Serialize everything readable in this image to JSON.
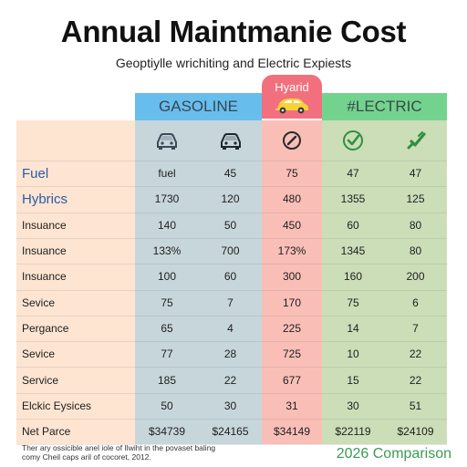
{
  "title": "Annual Maintmanie Cost",
  "subtitle": "Geoptiylle wrichiting and Electric Expiests",
  "hybrid_tab_label": "Hyarid",
  "comparison": "2026 Comparison",
  "footnote": [
    "Ther ary ossicible anel iole of Ilwiht in the povaset baling",
    "comy Cheil caps aril of cocoret, 2012."
  ],
  "colors": {
    "gasoline": "#57b7ec",
    "hybrid": "#f2707e",
    "electric": "#64cf82",
    "row_band": "#fde5d2"
  },
  "chart_data": {
    "type": "table",
    "title": "Annual Maintmanie Cost",
    "subtitle": "Geoptiylle wrichiting and Electric Expiests",
    "groups": [
      {
        "name": "GASOLINE",
        "columns": 2,
        "icons": [
          "car-icon",
          "car-icon"
        ]
      },
      {
        "name": "",
        "columns": 1,
        "icons": [
          "gauge-icon"
        ]
      },
      {
        "name": "#LECTRIC",
        "columns": 2,
        "icons": [
          "check-circle-icon",
          "plug-check-icon"
        ]
      }
    ],
    "rows": [
      {
        "label": "Fuel",
        "values": [
          "fuel",
          "45",
          "75",
          "47",
          "47"
        ]
      },
      {
        "label": "Hybrics",
        "values": [
          "1730",
          "120",
          "480",
          "1355",
          "125"
        ]
      },
      {
        "label": "Insuance",
        "values": [
          "140",
          "50",
          "450",
          "60",
          "80"
        ]
      },
      {
        "label": "Insuance",
        "values": [
          "133%",
          "700",
          "173%",
          "1345",
          "80"
        ]
      },
      {
        "label": "Insuance",
        "values": [
          "100",
          "60",
          "300",
          "160",
          "200"
        ]
      },
      {
        "label": "Sevice",
        "values": [
          "75",
          "7",
          "170",
          "75",
          "6"
        ]
      },
      {
        "label": "Pergance",
        "values": [
          "65",
          "4",
          "225",
          "14",
          "7"
        ]
      },
      {
        "label": "Sevice",
        "values": [
          "77",
          "28",
          "725",
          "10",
          "22"
        ]
      },
      {
        "label": "Service",
        "values": [
          "185",
          "22",
          "677",
          "15",
          "22"
        ]
      },
      {
        "label": "Elckic Eysices",
        "values": [
          "50",
          "30",
          "31",
          "30",
          "51"
        ]
      },
      {
        "label": "Net Parce",
        "values": [
          "$34739",
          "$24165",
          "$34149",
          "$22119",
          "$24109"
        ]
      }
    ]
  }
}
